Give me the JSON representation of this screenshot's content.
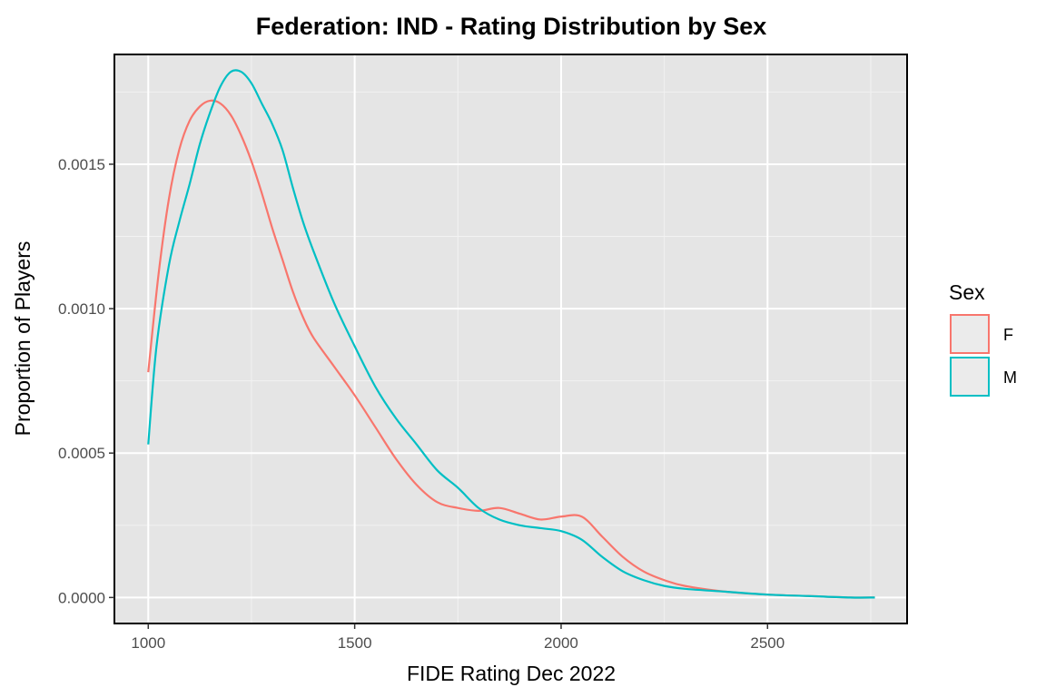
{
  "chart_data": {
    "type": "line",
    "title": "Federation: IND - Rating Distribution by Sex",
    "xlabel": "FIDE Rating Dec 2022",
    "ylabel": "Proportion of Players",
    "xlim": [
      918,
      2838
    ],
    "ylim": [
      -9e-05,
      0.00188
    ],
    "x_ticks": [
      1000,
      1500,
      2000,
      2500
    ],
    "x_tick_labels": [
      "1000",
      "1500",
      "2000",
      "2500"
    ],
    "y_ticks": [
      0.0,
      0.0005,
      0.001,
      0.0015
    ],
    "y_tick_labels": [
      "0.0000",
      "0.0005",
      "0.0010",
      "0.0015"
    ],
    "grid": true,
    "legend": {
      "title": "Sex",
      "position": "right"
    },
    "series": [
      {
        "name": "F",
        "color": "#F8766D",
        "x": [
          1000,
          1025,
          1050,
          1075,
          1100,
          1125,
          1150,
          1175,
          1200,
          1225,
          1250,
          1275,
          1300,
          1325,
          1350,
          1375,
          1400,
          1450,
          1500,
          1550,
          1600,
          1650,
          1700,
          1750,
          1800,
          1850,
          1900,
          1950,
          2000,
          2050,
          2100,
          2150,
          2200,
          2250,
          2300,
          2400,
          2500,
          2600,
          2700,
          2760
        ],
        "y": [
          0.00078,
          0.00112,
          0.00138,
          0.00155,
          0.00165,
          0.0017,
          0.00172,
          0.00171,
          0.00167,
          0.0016,
          0.00151,
          0.0014,
          0.00128,
          0.00117,
          0.00106,
          0.00097,
          0.0009,
          0.0008,
          0.0007,
          0.00059,
          0.00048,
          0.00039,
          0.00033,
          0.00031,
          0.0003,
          0.00031,
          0.00029,
          0.00027,
          0.00028,
          0.00028,
          0.00021,
          0.00014,
          9e-05,
          6e-05,
          4e-05,
          2e-05,
          1e-05,
          5e-06,
          0.0,
          0.0
        ]
      },
      {
        "name": "M",
        "color": "#00BFC4",
        "x": [
          1000,
          1020,
          1050,
          1075,
          1100,
          1125,
          1150,
          1175,
          1200,
          1225,
          1250,
          1275,
          1300,
          1325,
          1350,
          1375,
          1400,
          1450,
          1500,
          1550,
          1600,
          1650,
          1700,
          1750,
          1800,
          1850,
          1900,
          1950,
          2000,
          2050,
          2100,
          2150,
          2200,
          2250,
          2300,
          2400,
          2500,
          2600,
          2700,
          2760
        ],
        "y": [
          0.00053,
          0.00087,
          0.00115,
          0.0013,
          0.00143,
          0.00157,
          0.00168,
          0.00177,
          0.00182,
          0.00182,
          0.00178,
          0.00171,
          0.00164,
          0.00155,
          0.00142,
          0.0013,
          0.0012,
          0.00102,
          0.00087,
          0.00073,
          0.00062,
          0.00053,
          0.00044,
          0.00038,
          0.00031,
          0.00027,
          0.00025,
          0.00024,
          0.00023,
          0.0002,
          0.00014,
          9e-05,
          6e-05,
          4e-05,
          3e-05,
          2e-05,
          1e-05,
          5e-06,
          0.0,
          0.0
        ]
      }
    ]
  }
}
